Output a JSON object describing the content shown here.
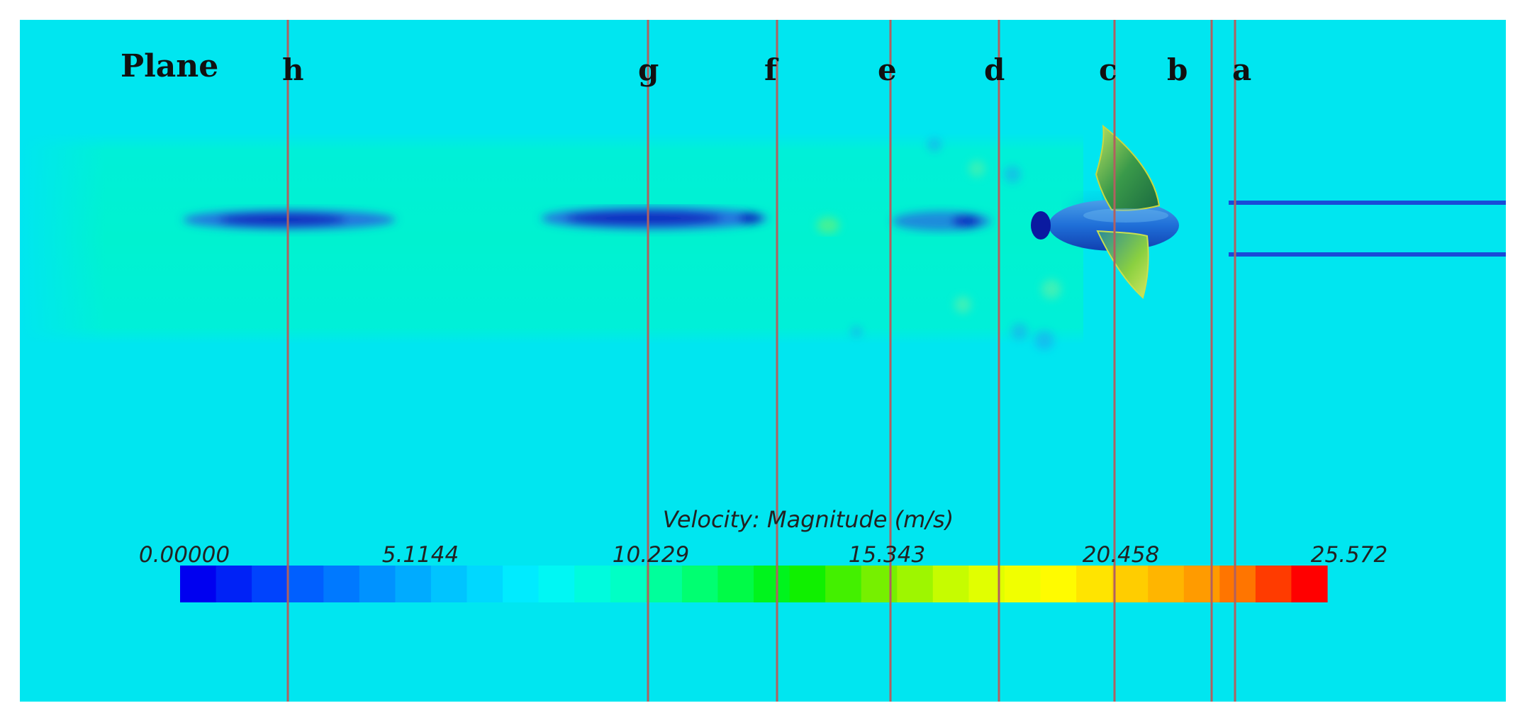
{
  "figure": {
    "plane_title": "Plane",
    "planes": [
      {
        "key": "h",
        "label": "h"
      },
      {
        "key": "g",
        "label": "g"
      },
      {
        "key": "f",
        "label": "f"
      },
      {
        "key": "e",
        "label": "e"
      },
      {
        "key": "d",
        "label": "d"
      },
      {
        "key": "c",
        "label": "c"
      },
      {
        "key": "b",
        "label": "b"
      },
      {
        "key": "a",
        "label": "a"
      }
    ],
    "colorbar": {
      "title": "Velocity: Magnitude (m/s)",
      "min": 0.0,
      "max": 25.572,
      "ticks": [
        "0.00000",
        "5.1144",
        "10.229",
        "15.343",
        "20.458",
        "25.572"
      ],
      "colors": [
        "#0000f0",
        "#0050ff",
        "#008cff",
        "#00c8ff",
        "#00f5ff",
        "#00ffc8",
        "#00ff64",
        "#00f000",
        "#7af000",
        "#d8ff00",
        "#ffff00",
        "#ffc800",
        "#ff8c00",
        "#ff0000"
      ]
    },
    "colors": {
      "background": "#00e6f0",
      "wake": "#00f0d6",
      "low_velocity": "#1a3cd8",
      "plane_line": "#b06060"
    }
  }
}
